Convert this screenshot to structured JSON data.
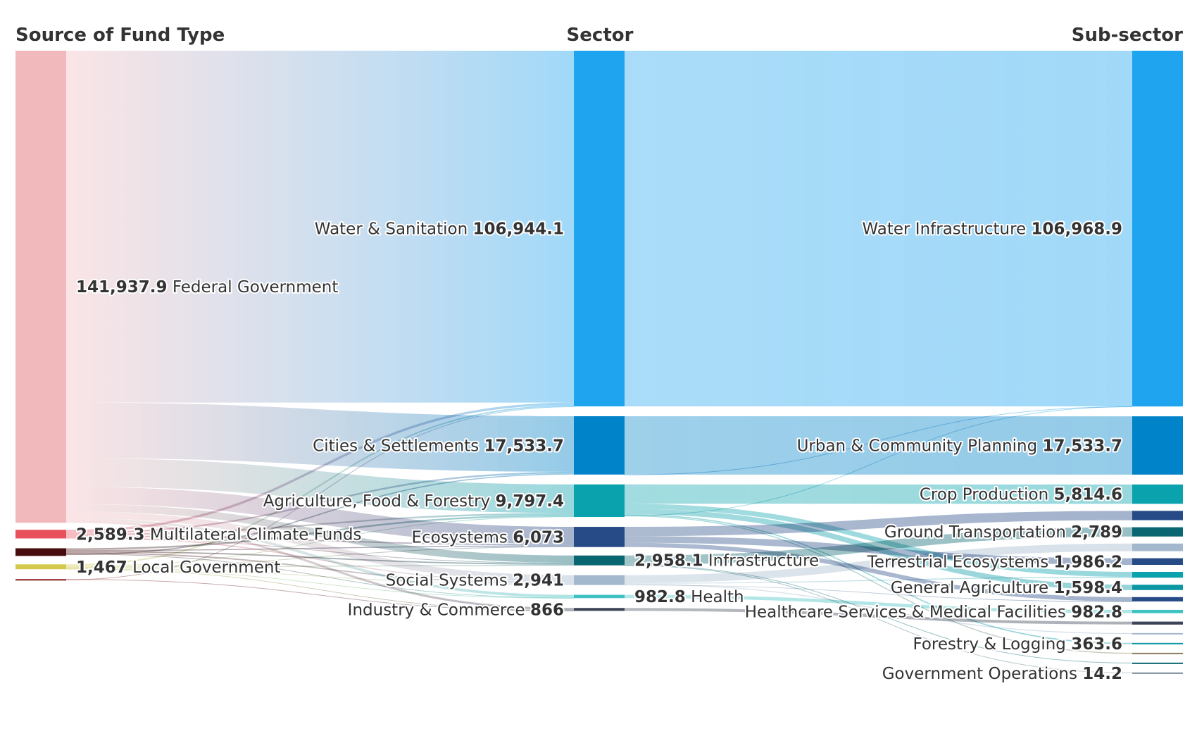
{
  "chart_data": {
    "type": "sankey",
    "columns": [
      "Source of Fund Type",
      "Sector",
      "Sub-sector"
    ],
    "nodes": [
      {
        "id": "fed",
        "col": 0,
        "label": "Federal Government",
        "value_text": "141,937.9",
        "value": 141937.9,
        "color": "#f2b9bd",
        "show": true
      },
      {
        "id": "mcf",
        "col": 0,
        "label": "Multilateral Climate Funds",
        "value_text": "2,589.3",
        "value": 2589.3,
        "color": "#e8505b",
        "show": true
      },
      {
        "id": "oth1",
        "col": 0,
        "label": "",
        "value_text": "",
        "value": 2300,
        "color": "#4a0d0d",
        "show": false
      },
      {
        "id": "loc",
        "col": 0,
        "label": "Local Government",
        "value_text": "1,467",
        "value": 1467,
        "color": "#d4c84a",
        "show": true
      },
      {
        "id": "oth2",
        "col": 0,
        "label": "",
        "value_text": "",
        "value": 400,
        "color": "#8b1a1a",
        "show": false
      },
      {
        "id": "ws",
        "col": 1,
        "label": "Water & Sanitation",
        "value_text": "106,944.1",
        "value": 106944.1,
        "color": "#1fa4ef",
        "show": true
      },
      {
        "id": "cs",
        "col": 1,
        "label": "Cities & Settlements",
        "value_text": "17,533.7",
        "value": 17533.7,
        "color": "#0083c8",
        "show": true
      },
      {
        "id": "aff",
        "col": 1,
        "label": "Agriculture, Food & Forestry",
        "value_text": "9,797.4",
        "value": 9797.4,
        "color": "#0aa3ad",
        "show": true
      },
      {
        "id": "eco",
        "col": 1,
        "label": "Ecosystems",
        "value_text": "6,073",
        "value": 6073,
        "color": "#274b86",
        "show": true
      },
      {
        "id": "inf",
        "col": 1,
        "label": "Infrastructure",
        "value_text": "2,958.1",
        "value": 2958.1,
        "color": "#0a6670",
        "show": true
      },
      {
        "id": "ss",
        "col": 1,
        "label": "Social Systems",
        "value_text": "2,941",
        "value": 2941,
        "color": "#a3b8cc",
        "show": true
      },
      {
        "id": "hl",
        "col": 1,
        "label": "Health",
        "value_text": "982.8",
        "value": 982.8,
        "color": "#3ec1c1",
        "show": true
      },
      {
        "id": "ic",
        "col": 1,
        "label": "Industry & Commerce",
        "value_text": "866",
        "value": 866,
        "color": "#3e4457",
        "show": true
      },
      {
        "id": "wi",
        "col": 2,
        "label": "Water Infrastructure",
        "value_text": "106,968.9",
        "value": 106968.9,
        "color": "#1fa4ef",
        "show": true
      },
      {
        "id": "ucp",
        "col": 2,
        "label": "Urban & Community Planning",
        "value_text": "17,533.7",
        "value": 17533.7,
        "color": "#0083c8",
        "show": true
      },
      {
        "id": "cp",
        "col": 2,
        "label": "Crop Production",
        "value_text": "5,814.6",
        "value": 5814.6,
        "color": "#0aa3ad",
        "show": true
      },
      {
        "id": "s1",
        "col": 2,
        "label": "",
        "value_text": "",
        "value": 2800,
        "color": "#274b86",
        "show": false
      },
      {
        "id": "gt",
        "col": 2,
        "label": "Ground Transportation",
        "value_text": "2,789",
        "value": 2789,
        "color": "#0a6670",
        "show": true
      },
      {
        "id": "s2",
        "col": 2,
        "label": "",
        "value_text": "",
        "value": 2300,
        "color": "#a3b8cc",
        "show": false
      },
      {
        "id": "te",
        "col": 2,
        "label": "Terrestrial Ecosystems",
        "value_text": "1,986.2",
        "value": 1986.2,
        "color": "#274b86",
        "show": true
      },
      {
        "id": "s3",
        "col": 2,
        "label": "",
        "value_text": "",
        "value": 1750,
        "color": "#0aa3ad",
        "show": false
      },
      {
        "id": "ga",
        "col": 2,
        "label": "General Agriculture",
        "value_text": "1,598.4",
        "value": 1598.4,
        "color": "#0a96a3",
        "show": true
      },
      {
        "id": "s4",
        "col": 2,
        "label": "",
        "value_text": "",
        "value": 1300,
        "color": "#274b86",
        "show": false
      },
      {
        "id": "hs",
        "col": 2,
        "label": "Healthcare Services & Medical Facilities",
        "value_text": "982.8",
        "value": 982.8,
        "color": "#3ec1c1",
        "show": true
      },
      {
        "id": "s5",
        "col": 2,
        "label": "",
        "value_text": "",
        "value": 900,
        "color": "#3e4457",
        "show": false
      },
      {
        "id": "s6",
        "col": 2,
        "label": "",
        "value_text": "",
        "value": 300,
        "color": "#a3b8cc",
        "show": false
      },
      {
        "id": "fl",
        "col": 2,
        "label": "Forestry & Logging",
        "value_text": "363.6",
        "value": 363.6,
        "color": "#0a96a3",
        "show": true
      },
      {
        "id": "s7",
        "col": 2,
        "label": "",
        "value_text": "",
        "value": 300,
        "color": "#8b7d5a",
        "show": false
      },
      {
        "id": "s8",
        "col": 2,
        "label": "",
        "value_text": "",
        "value": 250,
        "color": "#0a6670",
        "show": false
      },
      {
        "id": "go",
        "col": 2,
        "label": "Government Operations",
        "value_text": "14.2",
        "value": 14.2,
        "color": "#7a8a99",
        "show": true
      }
    ],
    "links": [
      {
        "s": "fed",
        "t": "ws",
        "v": 105800
      },
      {
        "s": "fed",
        "t": "cs",
        "v": 16700
      },
      {
        "s": "fed",
        "t": "aff",
        "v": 8600
      },
      {
        "s": "fed",
        "t": "eco",
        "v": 5200
      },
      {
        "s": "fed",
        "t": "inf",
        "v": 2200
      },
      {
        "s": "fed",
        "t": "ss",
        "v": 2000
      },
      {
        "s": "fed",
        "t": "hl",
        "v": 800
      },
      {
        "s": "fed",
        "t": "ic",
        "v": 637.9
      },
      {
        "s": "mcf",
        "t": "ws",
        "v": 700
      },
      {
        "s": "mcf",
        "t": "cs",
        "v": 500
      },
      {
        "s": "mcf",
        "t": "aff",
        "v": 500
      },
      {
        "s": "mcf",
        "t": "eco",
        "v": 400
      },
      {
        "s": "mcf",
        "t": "ss",
        "v": 300
      },
      {
        "s": "mcf",
        "t": "inf",
        "v": 189.3
      },
      {
        "s": "oth1",
        "t": "aff",
        "v": 500
      },
      {
        "s": "oth1",
        "t": "eco",
        "v": 300
      },
      {
        "s": "oth1",
        "t": "inf",
        "v": 400
      },
      {
        "s": "oth1",
        "t": "ss",
        "v": 400
      },
      {
        "s": "oth1",
        "t": "hl",
        "v": 100
      },
      {
        "s": "oth1",
        "t": "cs",
        "v": 333.7
      },
      {
        "s": "loc",
        "t": "ws",
        "v": 444.1
      },
      {
        "s": "loc",
        "t": "aff",
        "v": 197.4
      },
      {
        "s": "loc",
        "t": "eco",
        "v": 173
      },
      {
        "s": "loc",
        "t": "inf",
        "v": 168.8
      },
      {
        "s": "loc",
        "t": "ss",
        "v": 241
      },
      {
        "s": "loc",
        "t": "hl",
        "v": 82.8
      },
      {
        "s": "loc",
        "t": "ic",
        "v": 128.1
      },
      {
        "s": "oth2",
        "t": "ic",
        "v": 100
      },
      {
        "s": "oth2",
        "t": "ws",
        "v": 0.001
      },
      {
        "s": "ws",
        "t": "wi",
        "v": 106944.1
      },
      {
        "s": "cs",
        "t": "ucp",
        "v": 17533.7
      },
      {
        "s": "cs",
        "t": "wi",
        "v": 0.001
      },
      {
        "s": "aff",
        "t": "cp",
        "v": 5814.6
      },
      {
        "s": "aff",
        "t": "s3",
        "v": 1500
      },
      {
        "s": "aff",
        "t": "ga",
        "v": 1598.4
      },
      {
        "s": "aff",
        "t": "fl",
        "v": 363.6
      },
      {
        "s": "aff",
        "t": "wi",
        "v": 24.8
      },
      {
        "s": "aff",
        "t": "s7",
        "v": 300
      },
      {
        "s": "eco",
        "t": "s1",
        "v": 2800
      },
      {
        "s": "eco",
        "t": "te",
        "v": 1986.2
      },
      {
        "s": "eco",
        "t": "s4",
        "v": 1286.8
      },
      {
        "s": "inf",
        "t": "gt",
        "v": 2789
      },
      {
        "s": "inf",
        "t": "s8",
        "v": 155.1
      },
      {
        "s": "inf",
        "t": "go",
        "v": 14.2
      },
      {
        "s": "ss",
        "t": "s2",
        "v": 2300
      },
      {
        "s": "ss",
        "t": "s3",
        "v": 250
      },
      {
        "s": "ss",
        "t": "s6",
        "v": 300
      },
      {
        "s": "ss",
        "t": "s4",
        "v": 13.2
      },
      {
        "s": "hl",
        "t": "hs",
        "v": 982.8
      },
      {
        "s": "ic",
        "t": "s5",
        "v": 866
      }
    ]
  }
}
